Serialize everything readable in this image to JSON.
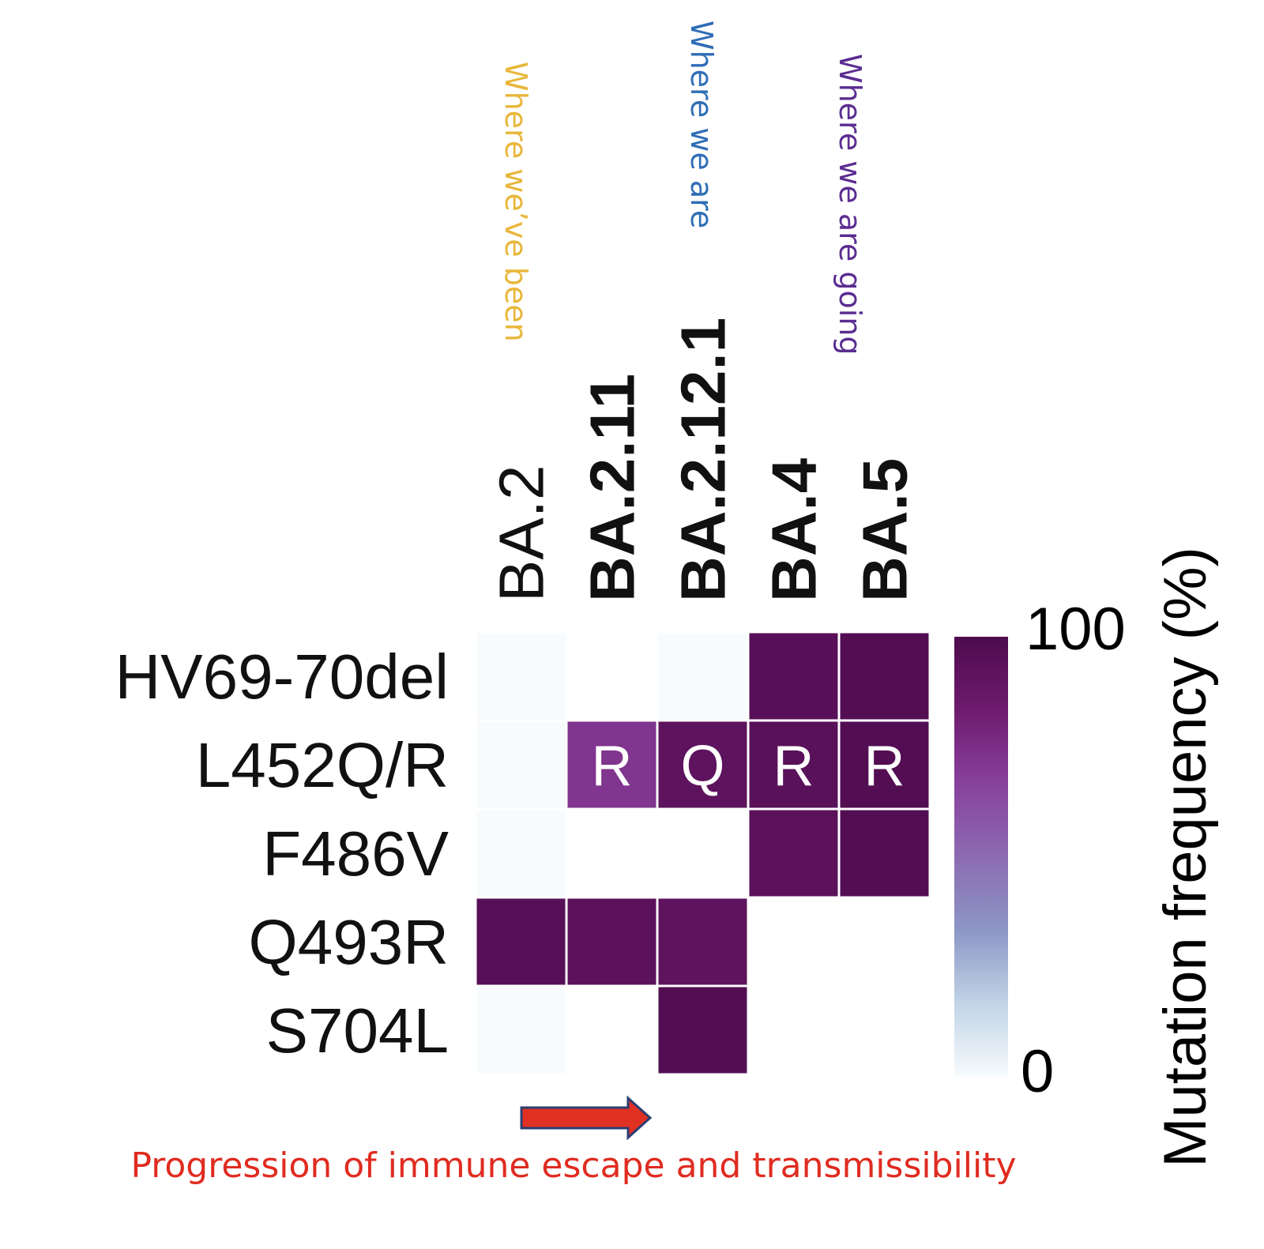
{
  "annotations": [
    {
      "text": "Where we’ve been",
      "color": "#E8B73A"
    },
    {
      "text": "Where we are",
      "color": "#2F6DB5"
    },
    {
      "text": "Where we are going",
      "color": "#5B2D91"
    }
  ],
  "arrow": {
    "label": "Progression of immune escape and transmissibility",
    "color": "#E03123",
    "label_color": "#E02B20",
    "outline": "#2B3F73"
  },
  "chart_data": {
    "type": "heatmap",
    "columns": [
      "BA.2",
      "BA.2.11",
      "BA.2.12.1",
      "BA.4",
      "BA.5"
    ],
    "column_emphasis": [
      "normal",
      "bold",
      "bold",
      "bold",
      "bold"
    ],
    "rows": [
      "HV69-70del",
      "L452Q/R",
      "F486V",
      "Q493R",
      "S704L"
    ],
    "values": [
      [
        0,
        null,
        0,
        95,
        97
      ],
      [
        0,
        72,
        92,
        94,
        97
      ],
      [
        0,
        null,
        null,
        93,
        97
      ],
      [
        95,
        93,
        92,
        null,
        null
      ],
      [
        0,
        null,
        97,
        null,
        null
      ]
    ],
    "cell_labels": [
      [
        "",
        "",
        "",
        "",
        ""
      ],
      [
        "",
        "R",
        "Q",
        "R",
        "R"
      ],
      [
        "",
        "",
        "",
        "",
        ""
      ],
      [
        "",
        "",
        "",
        "",
        ""
      ],
      [
        "",
        "",
        "",
        "",
        ""
      ]
    ],
    "colorbar": {
      "label": "Mutation frequency (%)",
      "min": 0,
      "max": 100,
      "tick_labels": [
        "100",
        "0"
      ],
      "colors": [
        "#f7fbfd",
        "#c1d4e6",
        "#8c96c6",
        "#8c6bb1",
        "#88419d",
        "#6e1b6e",
        "#4d0b4d"
      ]
    }
  }
}
